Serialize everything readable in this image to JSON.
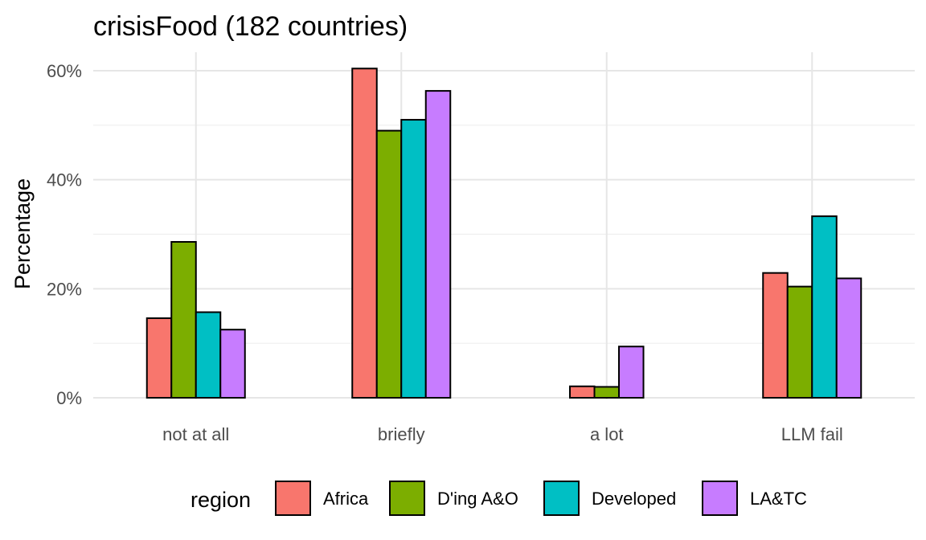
{
  "chart_data": {
    "type": "bar",
    "title": "crisisFood (182 countries)",
    "xlabel": "",
    "ylabel": "Percentage",
    "categories": [
      "not at all",
      "briefly",
      "a lot",
      "LLM fail"
    ],
    "series": [
      {
        "name": "Africa",
        "color": "#F8766D",
        "values": [
          14.6,
          60.4,
          2.1,
          22.9
        ]
      },
      {
        "name": "D'ing A&O",
        "color": "#7CAE00",
        "values": [
          28.6,
          49.0,
          2.0,
          20.4
        ]
      },
      {
        "name": "Developed",
        "color": "#00BFC4",
        "values": [
          15.7,
          51.0,
          0,
          33.3
        ]
      },
      {
        "name": "LA&TC",
        "color": "#C77CFF",
        "values": [
          12.5,
          56.3,
          9.4,
          21.9
        ]
      }
    ],
    "ylim": [
      0,
      63
    ],
    "yticks": [
      0,
      20,
      40,
      60
    ],
    "ytick_labels": [
      "0%",
      "20%",
      "40%",
      "60%"
    ],
    "grid": true,
    "legend": {
      "title": "region",
      "position": "bottom"
    }
  }
}
